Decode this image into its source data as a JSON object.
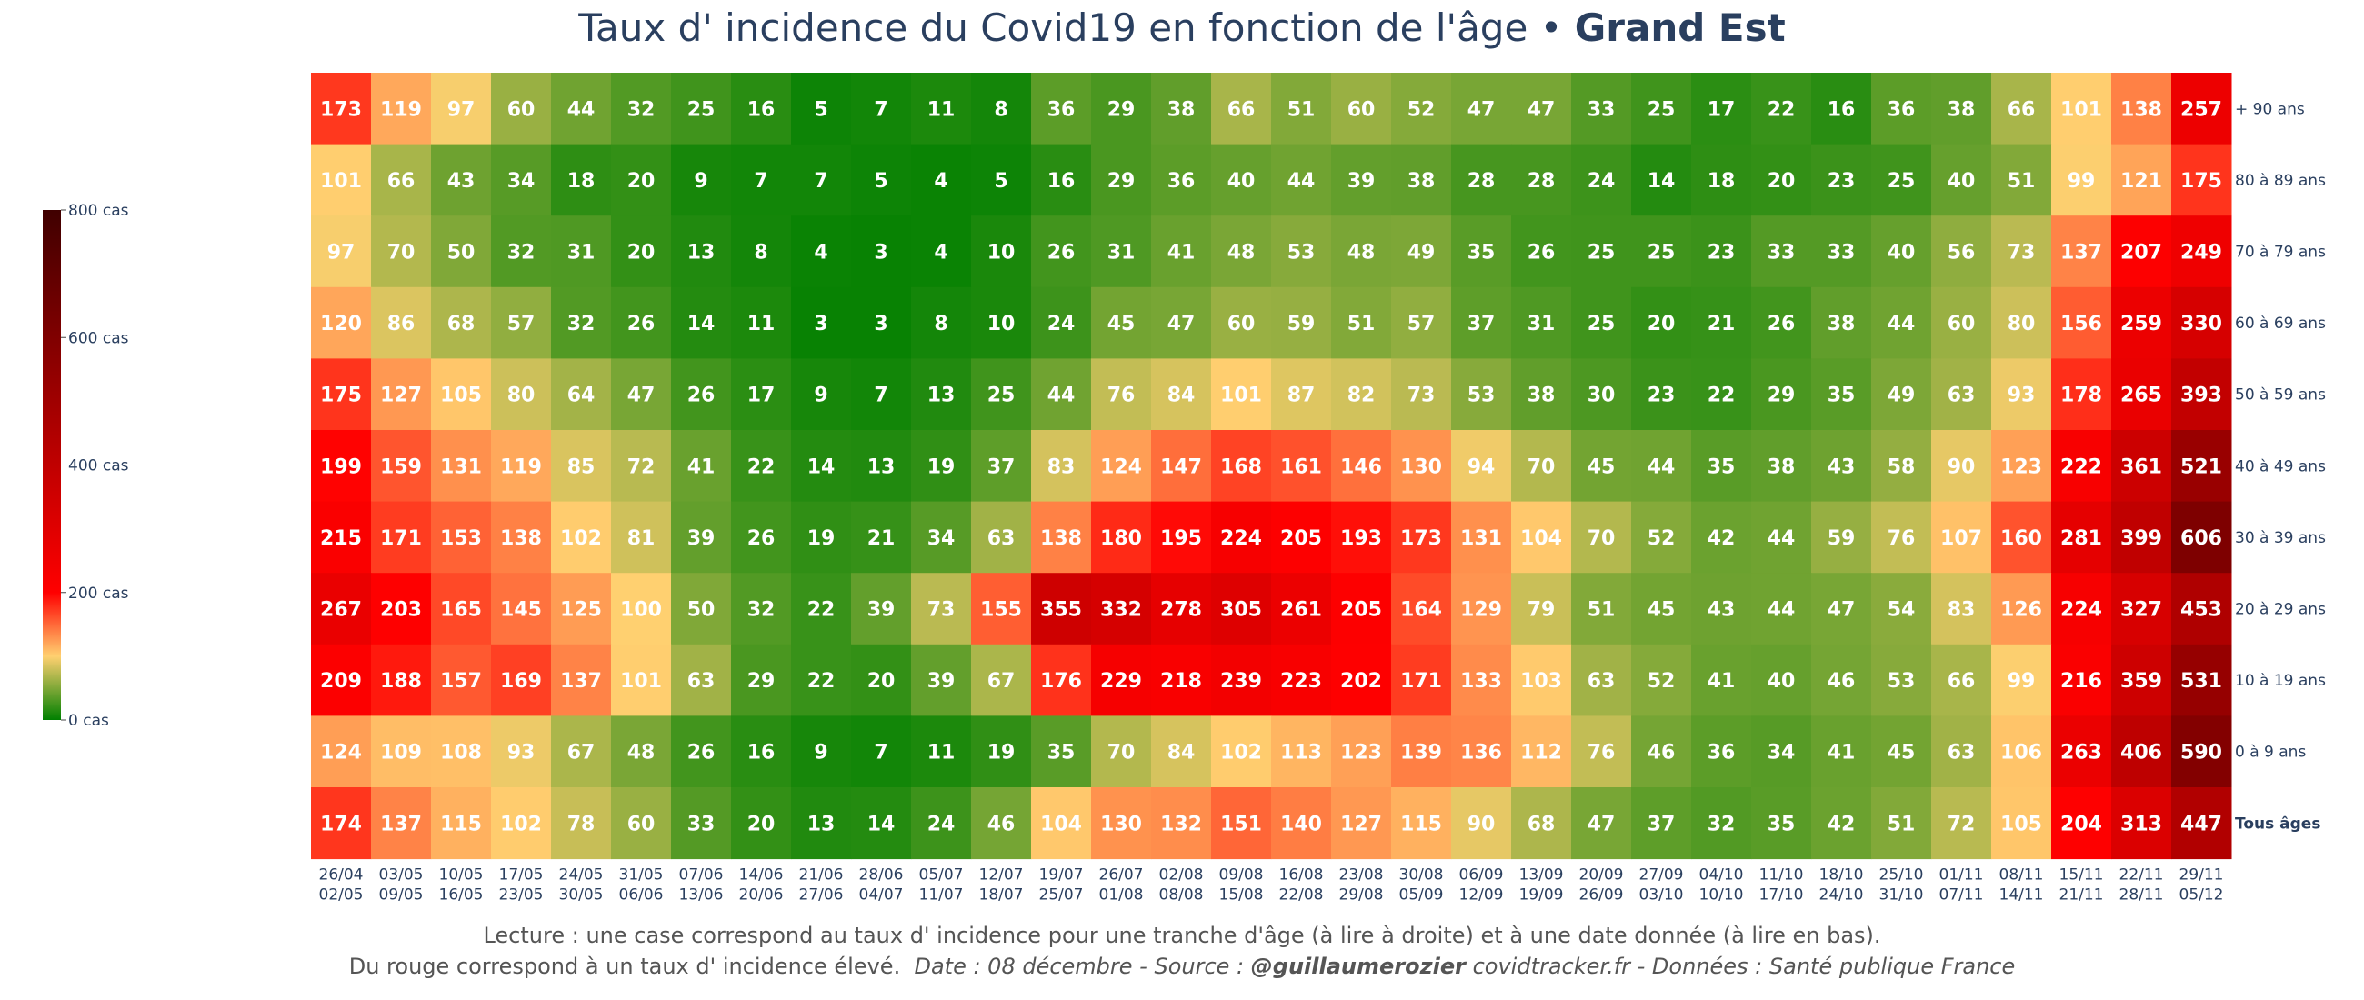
{
  "title": {
    "main": "Taux d' incidence du Covid19 en fonction de l'âge •",
    "region": "Grand Est"
  },
  "caption": {
    "line1": "Lecture : une case correspond au taux d' incidence pour une tranche d'âge (à lire à droite) et à une date donnée (à lire en bas).",
    "line2_start": "Du rouge correspond à un taux d' incidence élevé.",
    "date_source": "Date : 08 décembre - Source :",
    "author": "@guillaumerozier",
    "site_data": "covidtracker.fr - Données : Santé publique France"
  },
  "colors": {
    "scale": [
      "#008000",
      "#ffd070",
      "#ff0000",
      "#400000"
    ]
  },
  "chart_data": {
    "type": "heatmap",
    "title": "Taux d' incidence du Covid19 en fonction de l'âge • Grand Est",
    "x": [
      [
        "26/04",
        "02/05"
      ],
      [
        "03/05",
        "09/05"
      ],
      [
        "10/05",
        "16/05"
      ],
      [
        "17/05",
        "23/05"
      ],
      [
        "24/05",
        "30/05"
      ],
      [
        "31/05",
        "06/06"
      ],
      [
        "07/06",
        "13/06"
      ],
      [
        "14/06",
        "20/06"
      ],
      [
        "21/06",
        "27/06"
      ],
      [
        "28/06",
        "04/07"
      ],
      [
        "05/07",
        "11/07"
      ],
      [
        "12/07",
        "18/07"
      ],
      [
        "19/07",
        "25/07"
      ],
      [
        "26/07",
        "01/08"
      ],
      [
        "02/08",
        "08/08"
      ],
      [
        "09/08",
        "15/08"
      ],
      [
        "16/08",
        "22/08"
      ],
      [
        "23/08",
        "29/08"
      ],
      [
        "30/08",
        "05/09"
      ],
      [
        "06/09",
        "12/09"
      ],
      [
        "13/09",
        "19/09"
      ],
      [
        "20/09",
        "26/09"
      ],
      [
        "27/09",
        "03/10"
      ],
      [
        "04/10",
        "10/10"
      ],
      [
        "11/10",
        "17/10"
      ],
      [
        "18/10",
        "24/10"
      ],
      [
        "25/10",
        "31/10"
      ],
      [
        "01/11",
        "07/11"
      ],
      [
        "08/11",
        "14/11"
      ],
      [
        "15/11",
        "21/11"
      ],
      [
        "22/11",
        "28/11"
      ],
      [
        "29/11",
        "05/12"
      ]
    ],
    "y": [
      "+ 90 ans",
      "80 à 89 ans",
      "70 à 79 ans",
      "60 à 69 ans",
      "50 à 59 ans",
      "40 à 49 ans",
      "30 à 39 ans",
      "20 à 29 ans",
      "10 à 19 ans",
      "0 à 9 ans",
      "Tous âges"
    ],
    "y_bold": [
      false,
      false,
      false,
      false,
      false,
      false,
      false,
      false,
      false,
      false,
      true
    ],
    "z": [
      [
        173,
        119,
        97,
        60,
        44,
        32,
        25,
        16,
        5,
        7,
        11,
        8,
        36,
        29,
        38,
        66,
        51,
        60,
        52,
        47,
        47,
        33,
        25,
        17,
        22,
        16,
        36,
        38,
        66,
        101,
        138,
        257
      ],
      [
        101,
        66,
        43,
        34,
        18,
        20,
        9,
        7,
        7,
        5,
        4,
        5,
        16,
        29,
        36,
        40,
        44,
        39,
        38,
        28,
        28,
        24,
        14,
        18,
        20,
        23,
        25,
        40,
        51,
        99,
        121,
        175
      ],
      [
        97,
        70,
        50,
        32,
        31,
        20,
        13,
        8,
        4,
        3,
        4,
        10,
        26,
        31,
        41,
        48,
        53,
        48,
        49,
        35,
        26,
        25,
        25,
        23,
        33,
        33,
        40,
        56,
        73,
        137,
        207,
        249
      ],
      [
        120,
        86,
        68,
        57,
        32,
        26,
        14,
        11,
        3,
        3,
        8,
        10,
        24,
        45,
        47,
        60,
        59,
        51,
        57,
        37,
        31,
        25,
        20,
        21,
        26,
        38,
        44,
        60,
        80,
        156,
        259,
        330
      ],
      [
        175,
        127,
        105,
        80,
        64,
        47,
        26,
        17,
        9,
        7,
        13,
        25,
        44,
        76,
        84,
        101,
        87,
        82,
        73,
        53,
        38,
        30,
        23,
        22,
        29,
        35,
        49,
        63,
        93,
        178,
        265,
        393
      ],
      [
        199,
        159,
        131,
        119,
        85,
        72,
        41,
        22,
        14,
        13,
        19,
        37,
        83,
        124,
        147,
        168,
        161,
        146,
        130,
        94,
        70,
        45,
        44,
        35,
        38,
        43,
        58,
        90,
        123,
        222,
        361,
        521
      ],
      [
        215,
        171,
        153,
        138,
        102,
        81,
        39,
        26,
        19,
        21,
        34,
        63,
        138,
        180,
        195,
        224,
        205,
        193,
        173,
        131,
        104,
        70,
        52,
        42,
        44,
        59,
        76,
        107,
        160,
        281,
        399,
        606
      ],
      [
        267,
        203,
        165,
        145,
        125,
        100,
        50,
        32,
        22,
        39,
        73,
        155,
        355,
        332,
        278,
        305,
        261,
        205,
        164,
        129,
        79,
        51,
        45,
        43,
        44,
        47,
        54,
        83,
        126,
        224,
        327,
        453
      ],
      [
        209,
        188,
        157,
        169,
        137,
        101,
        63,
        29,
        22,
        20,
        39,
        67,
        176,
        229,
        218,
        239,
        223,
        202,
        171,
        133,
        103,
        63,
        52,
        41,
        40,
        46,
        53,
        66,
        99,
        216,
        359,
        531
      ],
      [
        124,
        109,
        108,
        93,
        67,
        48,
        26,
        16,
        9,
        7,
        11,
        19,
        35,
        70,
        84,
        102,
        113,
        123,
        139,
        136,
        112,
        76,
        46,
        36,
        34,
        41,
        45,
        63,
        106,
        263,
        406,
        590
      ],
      [
        174,
        137,
        115,
        102,
        78,
        60,
        33,
        20,
        13,
        14,
        24,
        46,
        104,
        130,
        132,
        151,
        140,
        127,
        115,
        90,
        68,
        47,
        37,
        32,
        35,
        42,
        51,
        72,
        105,
        204,
        313,
        447
      ]
    ],
    "zmin": 0,
    "zmax": 800,
    "colorbar": {
      "ticks": [
        0,
        200,
        400,
        600,
        800
      ],
      "labels": [
        "0 cas",
        "200 cas",
        "400 cas",
        "600 cas",
        "800 cas"
      ]
    },
    "xlabel": "",
    "ylabel": ""
  }
}
